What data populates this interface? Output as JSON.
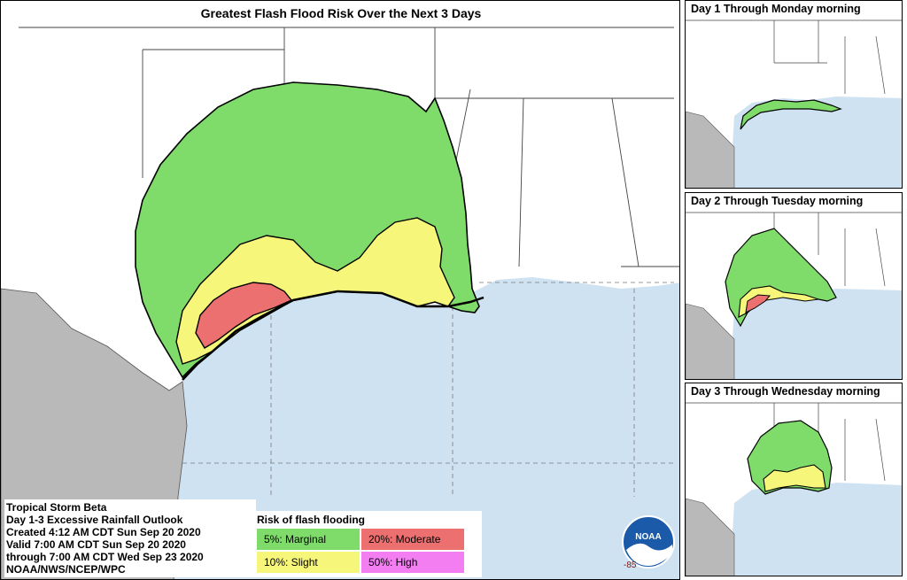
{
  "main": {
    "title": "Greatest Flash Flood Risk Over the Next 3 Days",
    "longitude_label": "-85"
  },
  "days": [
    {
      "title": "Day 1 Through Monday morning"
    },
    {
      "title": "Day 2 Through Tuesday morning"
    },
    {
      "title": "Day 3 Through Wednesday morning"
    }
  ],
  "info": {
    "lines": [
      "Tropical Storm Beta",
      "Day 1-3 Excessive Rainfall Outlook",
      "Created 4:12 AM CDT Sun Sep 20 2020",
      "Valid 7:00 AM CDT Sun Sep 20 2020",
      "through 7:00 AM CDT Wed Sep 23 2020",
      "NOAA/NWS/NCEP/WPC"
    ]
  },
  "legend": {
    "title": "Risk of flash flooding",
    "items": [
      {
        "label": "5%: Marginal",
        "color": "#7fdc6b"
      },
      {
        "label": "20%: Moderate",
        "color": "#ec7070"
      },
      {
        "label": "10%: Slight",
        "color": "#f6f67a"
      },
      {
        "label": "50%: High",
        "color": "#f27ef2"
      }
    ]
  },
  "logo": {
    "text": "NOAA"
  },
  "colors": {
    "gulf": "#cfe2f2",
    "mexico": "#b9b9b9",
    "land": "#ffffff",
    "marginal": "#7fdc6b",
    "slight": "#f6f67a",
    "moderate": "#ec7070"
  }
}
